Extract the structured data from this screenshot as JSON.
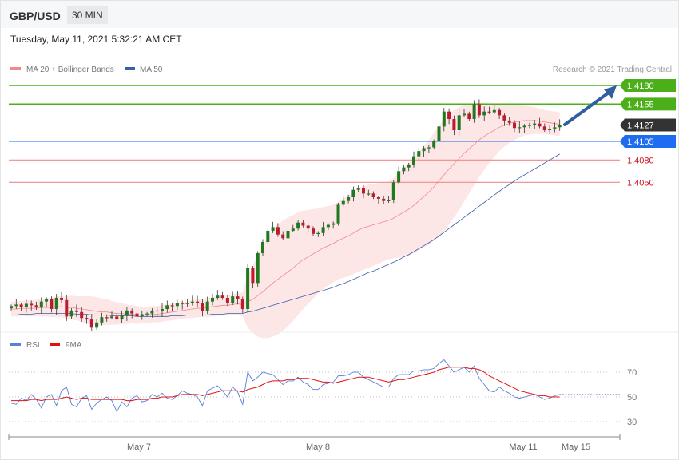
{
  "header": {
    "pair": "GBP/USD",
    "timeframe": "30 MIN",
    "datetime": "Tuesday, May 11, 2021 5:32:21 AM CET"
  },
  "legend": {
    "ma20": "MA 20 + Bollinger Bands",
    "ma50": "MA 50",
    "credit": "Research © 2021 Trading Central"
  },
  "colors": {
    "resistance": "#4caf1a",
    "support": "#f08a8a",
    "current": "#333333",
    "pivot": "#1e6cf0",
    "up_candle": "#1f7a1f",
    "down_candle": "#c0182d",
    "ma20": "#f08a8a",
    "ma50": "#3b5ea8",
    "bands": "#fde3e3",
    "arrow": "#2f5fa0",
    "rsi": "#5b7fd6",
    "rsi_ma": "#e01010"
  },
  "chart_data": [
    {
      "type": "candlestick",
      "price_levels": [
        {
          "value": 1.418,
          "label": "1.4180",
          "kind": "resistance"
        },
        {
          "value": 1.4155,
          "label": "1.4155",
          "kind": "resistance"
        },
        {
          "value": 1.4127,
          "label": "1.4127",
          "kind": "current"
        },
        {
          "value": 1.4105,
          "label": "1.4105",
          "kind": "pivot"
        },
        {
          "value": 1.408,
          "label": "1.4080",
          "kind": "support"
        },
        {
          "value": 1.405,
          "label": "1.4050",
          "kind": "support"
        }
      ],
      "x_ticks": [
        "May 7",
        "May 8",
        "May 11",
        "May 15"
      ],
      "close": [
        1.3884,
        1.3886,
        1.3883,
        1.3887,
        1.3885,
        1.3882,
        1.389,
        1.3893,
        1.388,
        1.3895,
        1.3892,
        1.387,
        1.3878,
        1.3876,
        1.3868,
        1.3866,
        1.3855,
        1.3862,
        1.3869,
        1.3868,
        1.387,
        1.3866,
        1.3872,
        1.3878,
        1.3874,
        1.387,
        1.3873,
        1.3874,
        1.3878,
        1.3877,
        1.388,
        1.3885,
        1.3884,
        1.3888,
        1.3887,
        1.3888,
        1.389,
        1.3888,
        1.3877,
        1.389,
        1.3895,
        1.3898,
        1.3895,
        1.3888,
        1.3897,
        1.3893,
        1.388,
        1.3935,
        1.3915,
        1.3955,
        1.397,
        1.3985,
        1.399,
        1.398,
        1.3975,
        1.3985,
        1.3988,
        1.3996,
        1.3992,
        1.3988,
        1.3981,
        1.3982,
        1.399,
        1.3993,
        1.3995,
        1.402,
        1.4025,
        1.403,
        1.404,
        1.4042,
        1.4035,
        1.4035,
        1.403,
        1.4028,
        1.4025,
        1.4026,
        1.405,
        1.4065,
        1.407,
        1.4074,
        1.4085,
        1.4092,
        1.4096,
        1.4097,
        1.4105,
        1.4125,
        1.4145,
        1.4135,
        1.412,
        1.414,
        1.4142,
        1.4135,
        1.4155,
        1.414,
        1.4145,
        1.4144,
        1.4147,
        1.414,
        1.4133,
        1.413,
        1.4123,
        1.4124,
        1.4126,
        1.4127,
        1.4129,
        1.4125,
        1.412,
        1.4122,
        1.4124,
        1.4127
      ],
      "ma20": [
        1.388,
        1.388,
        1.3881,
        1.3881,
        1.3881,
        1.3881,
        1.3882,
        1.3882,
        1.3882,
        1.3883,
        1.3883,
        1.3882,
        1.3882,
        1.3881,
        1.388,
        1.3879,
        1.3878,
        1.3877,
        1.3876,
        1.3876,
        1.3875,
        1.3874,
        1.3874,
        1.3873,
        1.3873,
        1.3872,
        1.3872,
        1.3872,
        1.3873,
        1.3873,
        1.3874,
        1.3875,
        1.3876,
        1.3877,
        1.3878,
        1.3879,
        1.388,
        1.3881,
        1.3881,
        1.3882,
        1.3883,
        1.3884,
        1.3885,
        1.3885,
        1.3886,
        1.3887,
        1.3886,
        1.389,
        1.3893,
        1.3898,
        1.3903,
        1.3909,
        1.3915,
        1.392,
        1.3925,
        1.393,
        1.3935,
        1.3941,
        1.3946,
        1.395,
        1.3954,
        1.3958,
        1.3962,
        1.3965,
        1.3968,
        1.3972,
        1.3975,
        1.3978,
        1.3982,
        1.3986,
        1.3989,
        1.3991,
        1.3993,
        1.3995,
        1.3997,
        1.3999,
        1.4002,
        1.4006,
        1.401,
        1.4014,
        1.4019,
        1.4025,
        1.4031,
        1.4037,
        1.4044,
        1.4052,
        1.406,
        1.4068,
        1.4075,
        1.4082,
        1.4089,
        1.4095,
        1.4101,
        1.4107,
        1.4112,
        1.4116,
        1.412,
        1.4124,
        1.4127,
        1.4129,
        1.4131,
        1.4132,
        1.4133,
        1.4133,
        1.4133,
        1.4132,
        1.4131,
        1.413,
        1.4129,
        1.4128
      ],
      "ma50": [
        1.3872,
        1.3872,
        1.3873,
        1.3873,
        1.3873,
        1.3874,
        1.3874,
        1.3874,
        1.3874,
        1.3874,
        1.3874,
        1.3874,
        1.3874,
        1.3873,
        1.3873,
        1.3873,
        1.3872,
        1.3872,
        1.3872,
        1.3872,
        1.3871,
        1.3871,
        1.3871,
        1.3871,
        1.3871,
        1.387,
        1.387,
        1.387,
        1.387,
        1.387,
        1.387,
        1.387,
        1.3871,
        1.3871,
        1.3871,
        1.3872,
        1.3872,
        1.3872,
        1.3872,
        1.3872,
        1.3873,
        1.3873,
        1.3873,
        1.3874,
        1.3874,
        1.3874,
        1.3874,
        1.3876,
        1.3877,
        1.3879,
        1.3881,
        1.3883,
        1.3885,
        1.3887,
        1.3889,
        1.3891,
        1.3893,
        1.3895,
        1.3897,
        1.3899,
        1.3901,
        1.3903,
        1.3905,
        1.3907,
        1.3909,
        1.3912,
        1.3914,
        1.3917,
        1.392,
        1.3923,
        1.3926,
        1.3929,
        1.3931,
        1.3934,
        1.3937,
        1.394,
        1.3943,
        1.3946,
        1.395,
        1.3953,
        1.3957,
        1.3961,
        1.3965,
        1.3969,
        1.3973,
        1.3978,
        1.3983,
        1.3988,
        1.3993,
        1.3998,
        1.4003,
        1.4008,
        1.4013,
        1.4018,
        1.4023,
        1.4028,
        1.4033,
        1.4038,
        1.4043,
        1.4047,
        1.4052,
        1.4056,
        1.406,
        1.4064,
        1.4068,
        1.4072,
        1.4076,
        1.408,
        1.4084,
        1.4088
      ],
      "band_width": [
        0.001,
        0.001,
        0.001,
        0.0011,
        0.0011,
        0.0011,
        0.0012,
        0.0012,
        0.0013,
        0.0014,
        0.0014,
        0.0015,
        0.0016,
        0.0016,
        0.0017,
        0.0018,
        0.0019,
        0.0019,
        0.0018,
        0.0017,
        0.0016,
        0.0015,
        0.0014,
        0.0013,
        0.0012,
        0.0012,
        0.0011,
        0.0011,
        0.0011,
        0.0011,
        0.0011,
        0.0011,
        0.0011,
        0.0011,
        0.0011,
        0.0011,
        0.0012,
        0.0012,
        0.0012,
        0.0013,
        0.0013,
        0.0013,
        0.0014,
        0.0014,
        0.0014,
        0.0015,
        0.0016,
        0.0035,
        0.0045,
        0.0055,
        0.0062,
        0.0068,
        0.0072,
        0.0074,
        0.0074,
        0.0073,
        0.0071,
        0.0069,
        0.0066,
        0.0063,
        0.006,
        0.0057,
        0.0055,
        0.0053,
        0.0052,
        0.0052,
        0.0053,
        0.0054,
        0.0055,
        0.0056,
        0.0056,
        0.0056,
        0.0055,
        0.0054,
        0.0053,
        0.0052,
        0.0054,
        0.0057,
        0.006,
        0.0062,
        0.0064,
        0.0066,
        0.0068,
        0.007,
        0.0072,
        0.0074,
        0.0076,
        0.0074,
        0.0072,
        0.0069,
        0.0065,
        0.006,
        0.0055,
        0.005,
        0.0045,
        0.004,
        0.0036,
        0.0032,
        0.0029,
        0.0026,
        0.0024,
        0.0022,
        0.002,
        0.0019,
        0.0018,
        0.0017,
        0.0016,
        0.0016,
        0.0016,
        0.0016
      ],
      "range_min": 1.383,
      "range_max": 1.419
    },
    {
      "type": "line",
      "name_rsi": "RSI",
      "name_ma": "9MA",
      "y_ticks": [
        70,
        50,
        30
      ],
      "rsi": [
        45,
        44,
        49,
        47,
        52,
        48,
        41,
        50,
        52,
        43,
        55,
        58,
        44,
        42,
        49,
        51,
        40,
        45,
        48,
        50,
        47,
        38,
        46,
        42,
        49,
        51,
        46,
        47,
        52,
        50,
        53,
        49,
        48,
        51,
        55,
        53,
        52,
        50,
        43,
        55,
        57,
        59,
        55,
        50,
        58,
        54,
        44,
        70,
        63,
        66,
        70,
        69,
        68,
        64,
        60,
        63,
        63,
        66,
        62,
        60,
        56,
        56,
        60,
        61,
        62,
        67,
        67,
        68,
        70,
        70,
        66,
        64,
        62,
        60,
        58,
        58,
        65,
        68,
        68,
        68,
        71,
        71,
        72,
        72,
        73,
        77,
        80,
        75,
        70,
        72,
        74,
        70,
        75,
        65,
        60,
        55,
        54,
        58,
        55,
        53,
        50,
        49,
        50,
        51,
        52,
        50,
        48,
        49,
        51,
        52
      ],
      "rsi_ma": [
        47,
        47,
        47,
        47,
        48,
        48,
        47,
        48,
        48,
        48,
        49,
        50,
        49,
        48,
        49,
        49,
        48,
        48,
        48,
        48,
        48,
        48,
        48,
        47,
        47,
        48,
        48,
        48,
        49,
        49,
        50,
        50,
        50,
        51,
        52,
        52,
        52,
        52,
        51,
        52,
        53,
        54,
        55,
        55,
        55,
        55,
        54,
        56,
        57,
        58,
        60,
        62,
        63,
        63,
        63,
        64,
        64,
        65,
        65,
        65,
        64,
        63,
        62,
        62,
        61,
        62,
        63,
        64,
        65,
        66,
        66,
        66,
        65,
        64,
        63,
        62,
        63,
        64,
        64,
        65,
        66,
        67,
        68,
        69,
        70,
        72,
        73,
        74,
        74,
        74,
        74,
        73,
        73,
        72,
        70,
        67,
        65,
        63,
        61,
        59,
        57,
        55,
        54,
        53,
        52,
        51,
        51,
        50,
        50,
        50
      ]
    }
  ]
}
